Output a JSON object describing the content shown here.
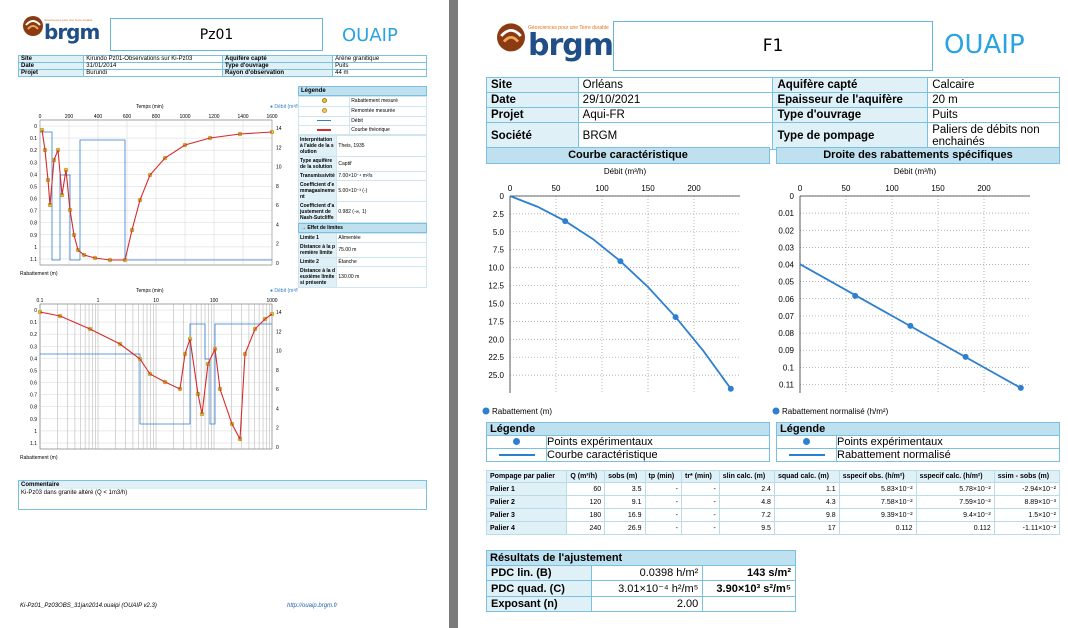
{
  "left": {
    "logo_word": "brgm",
    "logo_tagline": "Géosciences pour une Terre durable",
    "title": "Pz01",
    "ouaip_text": "OUAIP",
    "info": [
      {
        "k1": "Site",
        "v1": "Kirundo Pz01-Observations sur Ki-Pz03",
        "k2": "Aquifère capté",
        "v2": "Arène granitique"
      },
      {
        "k1": "Date",
        "v1": "31/01/2014",
        "k2": "Type d'ouvrage",
        "v2": "Puits"
      },
      {
        "k1": "Projet",
        "v1": "Burundi",
        "k2": "Rayon d'observation",
        "v2": "44 m"
      }
    ],
    "chart1": {
      "top_label": "Temps (min)",
      "debit_label": "Débit (m³/h)",
      "yaxis_label": "Rabattement (m)",
      "xticks": [
        "0",
        "200",
        "400",
        "600",
        "800",
        "1000",
        "1200",
        "1400",
        "1600"
      ],
      "yticks": [
        "0",
        "0.1",
        "0.2",
        "0.3",
        "0.4",
        "0.5",
        "0.6",
        "0.7",
        "0.8",
        "0.9",
        "1",
        "1.1"
      ],
      "rticks": [
        "14",
        "12",
        "10",
        "8",
        "6",
        "4",
        "2",
        "0"
      ]
    },
    "chart2": {
      "top_label": "Temps (min)",
      "debit_label": "Débit (m³/h)",
      "yaxis_label": "Rabattement (m)",
      "xticks": [
        "0.1",
        "1",
        "10",
        "100",
        "1000"
      ],
      "yticks": [
        "0",
        "0.1",
        "0.2",
        "0.3",
        "0.4",
        "0.5",
        "0.6",
        "0.7",
        "0.8",
        "0.9",
        "1",
        "1.1"
      ],
      "rticks": [
        "14",
        "12",
        "10",
        "8",
        "6",
        "4",
        "2",
        "0"
      ]
    },
    "legend_title": "Légende",
    "legend_items": [
      "Rabattement mesuré",
      "Remontée mesurée",
      "Débit",
      "Courbe théorique"
    ],
    "params": [
      {
        "k": "Interprétation à l'aide de la solution",
        "v": "Theis, 1935"
      },
      {
        "k": "Type aquifère de la solution",
        "v": "Captif"
      },
      {
        "k": "Transmissivité",
        "v": "7.00×10⁻⁴ m²/s"
      },
      {
        "k": "Coefficient d'emmagasinement",
        "v": "5.00×10⁻³ (-)"
      },
      {
        "k": "Coefficient d'ajustement de Nash-Sutcliffe",
        "v": "0.982 (-∞, 1)"
      }
    ],
    "limits_title": "Effet de limites",
    "limits": [
      {
        "k": "Limite 1",
        "v": "Alimentée"
      },
      {
        "k": "Distance à la première limite",
        "v": "75.00 m"
      },
      {
        "k": "Limite 2",
        "v": "Étanche"
      },
      {
        "k": "Distance à la deuxième limite si présente",
        "v": "130.00 m"
      }
    ],
    "comment_title": "Commentaire",
    "comment_text": "Ki-Pz03 dans granite altéré (Q < 1m3/h)",
    "footer_file": "Ki-Pz01_Pz03OBS_31jan2014.ouaipi (OUAIP v2.3)",
    "footer_url": "http://ouaip.brgm.fr"
  },
  "right": {
    "logo_word": "brgm",
    "logo_tagline": "Géosciences pour une Terre durable",
    "title": "F1",
    "ouaip_text": "OUAIP",
    "info": [
      {
        "k1": "Site",
        "v1": "Orléans",
        "k2": "Aquifère capté",
        "v2": "Calcaire"
      },
      {
        "k1": "Date",
        "v1": "29/10/2021",
        "k2": "Epaisseur de l'aquifère",
        "v2": "20 m"
      },
      {
        "k1": "Projet",
        "v1": "Aqui-FR",
        "k2": "Type d'ouvrage",
        "v2": "Puits"
      },
      {
        "k1": "Société",
        "v1": "BRGM",
        "k2": "Type de pompage",
        "v2": "Paliers de débits non enchainés"
      }
    ],
    "section1_title": "Courbe caractéristique",
    "section2_title": "Droite des rabattements spécifiques",
    "legend_title": "Légende",
    "legend1": [
      "Points expérimentaux",
      "Courbe caractéristique"
    ],
    "legend2": [
      "Points expérimentaux",
      "Rabattement normalisé"
    ],
    "pump_headers": [
      "Pompage par palier",
      "Q (m³/h)",
      "sobs (m)",
      "tp (min)",
      "tr* (min)",
      "slin calc. (m)",
      "squad calc. (m)",
      "sspecif obs. (h/m²)",
      "sspecif calc. (h/m²)",
      "ssim - sobs (m)"
    ],
    "pump_rows": [
      [
        "Palier 1",
        "60",
        "3.5",
        "-",
        "-",
        "2.4",
        "1.1",
        "5.83×10⁻²",
        "5.78×10⁻²",
        "-2.94×10⁻²"
      ],
      [
        "Palier 2",
        "120",
        "9.1",
        "-",
        "-",
        "4.8",
        "4.3",
        "7.58×10⁻²",
        "7.59×10⁻²",
        "8.89×10⁻³"
      ],
      [
        "Palier 3",
        "180",
        "16.9",
        "-",
        "-",
        "7.2",
        "9.8",
        "9.39×10⁻²",
        "9.4×10⁻²",
        "1.5×10⁻²"
      ],
      [
        "Palier 4",
        "240",
        "26.9",
        "-",
        "-",
        "9.5",
        "17",
        "0.112",
        "0.112",
        "-1.11×10⁻²"
      ]
    ],
    "results_title": "Résultats de l'ajustement",
    "results": [
      {
        "k": "PDC lin. (B)",
        "v": "0.0398 h/m²",
        "v2": "143 s/m²"
      },
      {
        "k": "PDC quad. (C)",
        "v": "3.01×10⁻⁴ h²/m⁵",
        "v2": "3.90×10³ s²/m⁵"
      },
      {
        "k": "Exposant (n)",
        "v": "2.00",
        "v2": ""
      }
    ]
  },
  "chart_data": [
    {
      "type": "line",
      "title": "Courbe caractéristique",
      "xlabel": "Débit (m³/h)",
      "ylabel": "Rabattement (m)",
      "xlim": [
        0,
        250
      ],
      "ylim": [
        0,
        27.5
      ],
      "y_inverted": true,
      "xticks": [
        "0",
        "50",
        "100",
        "150",
        "200"
      ],
      "yticks": [
        "0",
        "2.5",
        "5.0",
        "7.5",
        "10.0",
        "12.5",
        "15.0",
        "17.5",
        "20.0",
        "22.5",
        "25.0"
      ],
      "series": [
        {
          "name": "Points expérimentaux",
          "x": [
            60,
            120,
            180,
            240
          ],
          "y": [
            3.5,
            9.1,
            16.9,
            26.9
          ]
        },
        {
          "name": "Courbe caractéristique",
          "x": [
            0,
            30,
            60,
            90,
            120,
            150,
            180,
            210,
            240
          ],
          "y": [
            0,
            1.5,
            3.5,
            6.0,
            9.1,
            12.7,
            16.9,
            21.6,
            26.9
          ]
        }
      ]
    },
    {
      "type": "line",
      "title": "Droite des rabattements spécifiques",
      "xlabel": "Débit (m³/h)",
      "ylabel": "Rabattement normalisé (h/m²)",
      "xlim": [
        0,
        250
      ],
      "ylim": [
        0,
        0.115
      ],
      "y_inverted": true,
      "xticks": [
        "0",
        "50",
        "100",
        "150",
        "200"
      ],
      "yticks": [
        "0",
        "0.01",
        "0.02",
        "0.03",
        "0.04",
        "0.05",
        "0.06",
        "0.07",
        "0.08",
        "0.09",
        "0.1",
        "0.11"
      ],
      "series": [
        {
          "name": "Points expérimentaux",
          "x": [
            60,
            120,
            180,
            240
          ],
          "y": [
            0.0583,
            0.0758,
            0.0939,
            0.112
          ]
        },
        {
          "name": "Rabattement normalisé",
          "x": [
            0,
            240
          ],
          "y": [
            0.0398,
            0.1121
          ]
        }
      ]
    }
  ],
  "colors": {
    "accent": "#2e7fd0",
    "header": "#bfe1ef",
    "key": "#dff0f7",
    "theory": "#d62b2b",
    "measured": "#e3c94a"
  }
}
